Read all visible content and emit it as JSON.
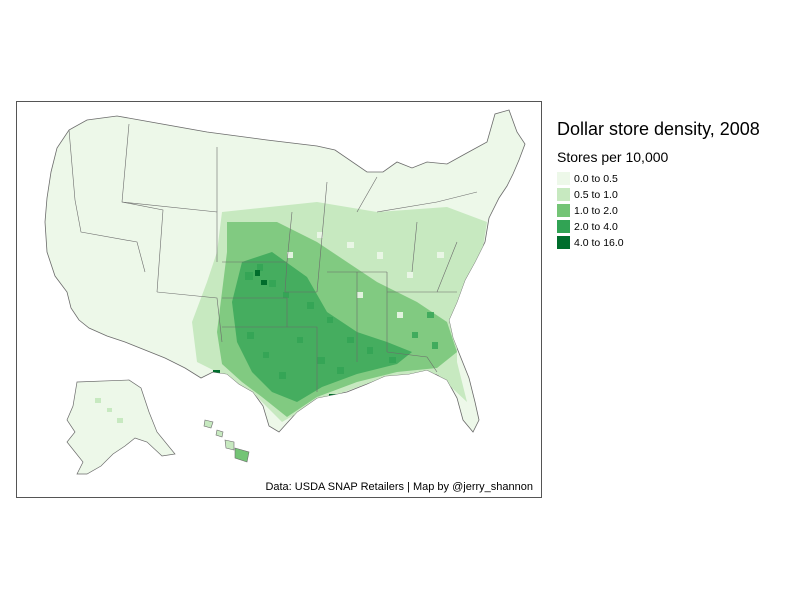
{
  "map": {
    "subject": "US counties – dollar store density",
    "caption": "Data: USDA SNAP Retailers | Map by @jerry_shannon"
  },
  "legend": {
    "title": "Dollar store density, 2008",
    "subtitle": "Stores per 10,000",
    "items": [
      {
        "label": "0.0 to 0.5",
        "color": "#edf8e9"
      },
      {
        "label": "0.5 to 1.0",
        "color": "#c7e9c0"
      },
      {
        "label": "1.0 to 2.0",
        "color": "#74c476"
      },
      {
        "label": "2.0 to 4.0",
        "color": "#31a354"
      },
      {
        "label": "4.0 to 16.0",
        "color": "#006d2c"
      }
    ]
  },
  "colors": {
    "border": "#555555",
    "state_line": "#6b6b6b"
  }
}
